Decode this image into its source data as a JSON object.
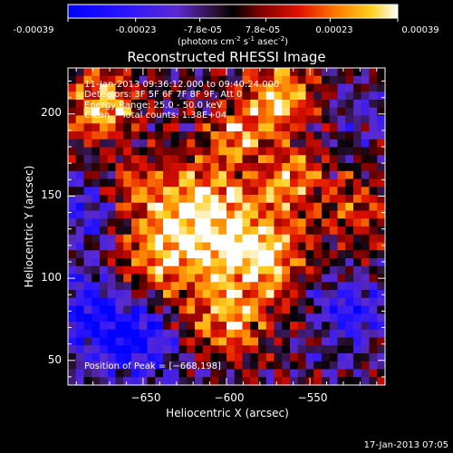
{
  "colorbar": {
    "tick_labels": [
      "-0.00039",
      "-0.00023",
      "-7.8e-05",
      "7.8e-05",
      "0.00023",
      "0.00039"
    ],
    "tick_values": [
      -0.00039,
      -0.00023,
      -7.8e-05,
      7.8e-05,
      0.00023,
      0.00039
    ],
    "range": [
      -0.00039,
      0.00039
    ],
    "units_label": "(photons cm",
    "units_sup1": "-2",
    "units_mid": " s",
    "units_sup2": "-1",
    "units_tail": " asec",
    "units_sup3": "-2",
    "units_close": ")"
  },
  "chart_data": {
    "type": "heatmap",
    "title": "Reconstructed RHESSI Image",
    "xlabel": "Heliocentric X (arcsec)",
    "ylabel": "Heliocentric Y (arcsec)",
    "xlim": [
      -695,
      -505
    ],
    "ylim": [
      35,
      228
    ],
    "x_ticks": [
      -650,
      -600,
      -550
    ],
    "y_ticks": [
      50,
      100,
      150,
      200
    ],
    "x_tick_labels": [
      "−650",
      "−600",
      "−550"
    ],
    "y_tick_labels": [
      "50",
      "100",
      "150",
      "200"
    ],
    "annotations": [
      "11-Jan-2013 09:36:12.000 to 09:40:24.000",
      "Detectors: 3F 5F 6F 7F 8F 9F, Att 0",
      "Energy Range: 25.0 - 50.0 keV",
      "Clean    Total counts: 1.38E+04"
    ],
    "peak_label": "Position of Peak = [−668,198]",
    "peak_position": [
      -668,
      198
    ],
    "grid": false,
    "colormap": "red-temperature",
    "field_sources": [
      {
        "x": -675,
        "y": 205,
        "amp": 0.9,
        "sigma": 14
      },
      {
        "x": -570,
        "y": 210,
        "amp": 0.85,
        "sigma": 16
      },
      {
        "x": -595,
        "y": 185,
        "amp": 0.6,
        "sigma": 12
      },
      {
        "x": -615,
        "y": 140,
        "amp": 0.95,
        "sigma": 22
      },
      {
        "x": -580,
        "y": 115,
        "amp": 0.9,
        "sigma": 20
      },
      {
        "x": -640,
        "y": 110,
        "amp": 0.7,
        "sigma": 18
      },
      {
        "x": -600,
        "y": 75,
        "amp": 0.75,
        "sigma": 16
      },
      {
        "x": -520,
        "y": 140,
        "amp": 0.55,
        "sigma": 14
      },
      {
        "x": -560,
        "y": 160,
        "amp": 0.6,
        "sigma": 14
      },
      {
        "x": -655,
        "y": 160,
        "amp": 0.45,
        "sigma": 12
      },
      {
        "x": -680,
        "y": 80,
        "amp": -0.7,
        "sigma": 18
      },
      {
        "x": -655,
        "y": 60,
        "amp": -0.8,
        "sigma": 16
      },
      {
        "x": -690,
        "y": 140,
        "amp": -0.5,
        "sigma": 14
      },
      {
        "x": -525,
        "y": 80,
        "amp": -0.55,
        "sigma": 16
      },
      {
        "x": -515,
        "y": 200,
        "amp": -0.3,
        "sigma": 12
      }
    ]
  },
  "footer": {
    "timestamp": "17-Jan-2013 07:05"
  }
}
